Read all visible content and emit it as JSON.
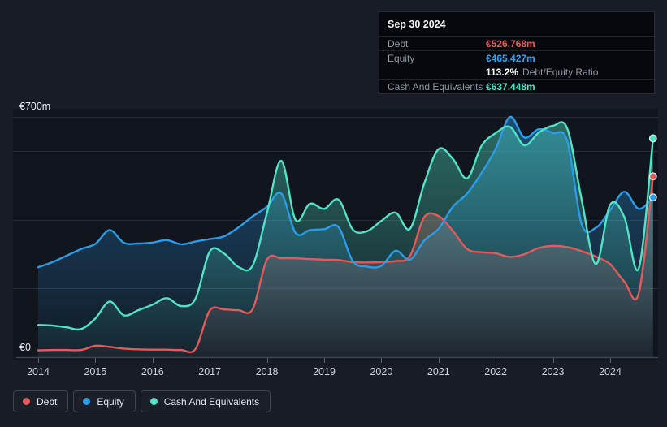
{
  "tooltip": {
    "date": "Sep 30 2024",
    "debt": {
      "label": "Debt",
      "value": "€526.768m",
      "color": "#ee5a5a"
    },
    "equity": {
      "label": "Equity",
      "value": "€465.427m",
      "color": "#3aa3ee"
    },
    "ratio": {
      "value": "113.2%",
      "label": "Debt/Equity Ratio"
    },
    "cash": {
      "label": "Cash And Equivalents",
      "value": "€637.448m",
      "color": "#4fe3c6"
    }
  },
  "legend": {
    "items": [
      {
        "label": "Debt",
        "color": "#e25a5a"
      },
      {
        "label": "Equity",
        "color": "#2d9ce6"
      },
      {
        "label": "Cash And Equivalents",
        "color": "#52e2c6"
      }
    ]
  },
  "chart_data": {
    "type": "area",
    "title": "Debt, Equity and Cash And Equivalents history",
    "x_ticks": [
      2014,
      2015,
      2016,
      2017,
      2018,
      2019,
      2020,
      2021,
      2022,
      2023,
      2024
    ],
    "x_range": [
      2014,
      2024.75
    ],
    "y_axis": {
      "min": 0,
      "max": 700,
      "top_label": "€700m",
      "bottom_label": "€0",
      "gridlines": [
        700,
        600,
        400,
        200,
        0
      ],
      "unit": "€m"
    },
    "grid_color": "#242c38",
    "axis_color": "#3b4450",
    "tick_color": "#5b6472",
    "plot_bg": "#10151e",
    "series": [
      {
        "name": "Debt",
        "color": "#e25a5a",
        "points": [
          [
            2014.0,
            20
          ],
          [
            2014.25,
            21
          ],
          [
            2014.5,
            21
          ],
          [
            2014.75,
            21
          ],
          [
            2015.0,
            33
          ],
          [
            2015.25,
            30
          ],
          [
            2015.5,
            25
          ],
          [
            2015.75,
            23
          ],
          [
            2016.0,
            22
          ],
          [
            2016.25,
            22
          ],
          [
            2016.5,
            21
          ],
          [
            2016.75,
            24
          ],
          [
            2017.0,
            136
          ],
          [
            2017.25,
            139
          ],
          [
            2017.5,
            137
          ],
          [
            2017.75,
            140
          ],
          [
            2018.0,
            284
          ],
          [
            2018.25,
            288
          ],
          [
            2018.5,
            288
          ],
          [
            2018.75,
            286
          ],
          [
            2019.0,
            284
          ],
          [
            2019.25,
            283
          ],
          [
            2019.5,
            277
          ],
          [
            2019.75,
            276
          ],
          [
            2020.0,
            277
          ],
          [
            2020.25,
            280
          ],
          [
            2020.5,
            295
          ],
          [
            2020.75,
            408
          ],
          [
            2021.0,
            411
          ],
          [
            2021.25,
            368
          ],
          [
            2021.5,
            315
          ],
          [
            2021.75,
            306
          ],
          [
            2022.0,
            303
          ],
          [
            2022.25,
            292
          ],
          [
            2022.5,
            300
          ],
          [
            2022.75,
            318
          ],
          [
            2023.0,
            324
          ],
          [
            2023.25,
            321
          ],
          [
            2023.5,
            309
          ],
          [
            2023.75,
            293
          ],
          [
            2024.0,
            271
          ],
          [
            2024.25,
            220
          ],
          [
            2024.5,
            186
          ],
          [
            2024.75,
            526.768
          ]
        ]
      },
      {
        "name": "Equity",
        "color": "#2d9ce6",
        "points": [
          [
            2014.0,
            262
          ],
          [
            2014.25,
            277
          ],
          [
            2014.5,
            296
          ],
          [
            2014.75,
            315
          ],
          [
            2015.0,
            330
          ],
          [
            2015.25,
            370
          ],
          [
            2015.5,
            333
          ],
          [
            2015.75,
            331
          ],
          [
            2016.0,
            334
          ],
          [
            2016.25,
            341
          ],
          [
            2016.5,
            329
          ],
          [
            2016.75,
            337
          ],
          [
            2017.0,
            344
          ],
          [
            2017.25,
            352
          ],
          [
            2017.5,
            378
          ],
          [
            2017.75,
            410
          ],
          [
            2018.0,
            438
          ],
          [
            2018.25,
            477
          ],
          [
            2018.5,
            362
          ],
          [
            2018.75,
            370
          ],
          [
            2019.0,
            373
          ],
          [
            2019.25,
            379
          ],
          [
            2019.5,
            280
          ],
          [
            2019.75,
            264
          ],
          [
            2020.0,
            266
          ],
          [
            2020.25,
            310
          ],
          [
            2020.5,
            284
          ],
          [
            2020.75,
            340
          ],
          [
            2021.0,
            374
          ],
          [
            2021.25,
            438
          ],
          [
            2021.5,
            477
          ],
          [
            2021.75,
            536
          ],
          [
            2022.0,
            607
          ],
          [
            2022.25,
            700
          ],
          [
            2022.5,
            640
          ],
          [
            2022.75,
            664
          ],
          [
            2023.0,
            653
          ],
          [
            2023.25,
            630
          ],
          [
            2023.5,
            388
          ],
          [
            2023.75,
            377
          ],
          [
            2024.0,
            428
          ],
          [
            2024.25,
            482
          ],
          [
            2024.5,
            432
          ],
          [
            2024.75,
            465.427
          ]
        ]
      },
      {
        "name": "Cash And Equivalents",
        "color": "#52e2c6",
        "points": [
          [
            2014.0,
            94
          ],
          [
            2014.25,
            92
          ],
          [
            2014.5,
            87
          ],
          [
            2014.75,
            82
          ],
          [
            2015.0,
            113
          ],
          [
            2015.25,
            162
          ],
          [
            2015.5,
            122
          ],
          [
            2015.75,
            137
          ],
          [
            2016.0,
            153
          ],
          [
            2016.25,
            172
          ],
          [
            2016.5,
            149
          ],
          [
            2016.75,
            170
          ],
          [
            2017.0,
            308
          ],
          [
            2017.25,
            302
          ],
          [
            2017.5,
            263
          ],
          [
            2017.75,
            267
          ],
          [
            2018.0,
            420
          ],
          [
            2018.25,
            572
          ],
          [
            2018.5,
            400
          ],
          [
            2018.75,
            447
          ],
          [
            2019.0,
            432
          ],
          [
            2019.25,
            459
          ],
          [
            2019.5,
            372
          ],
          [
            2019.75,
            367
          ],
          [
            2020.0,
            397
          ],
          [
            2020.25,
            421
          ],
          [
            2020.5,
            374
          ],
          [
            2020.75,
            506
          ],
          [
            2021.0,
            606
          ],
          [
            2021.25,
            578
          ],
          [
            2021.5,
            521
          ],
          [
            2021.75,
            615
          ],
          [
            2022.0,
            653
          ],
          [
            2022.25,
            671
          ],
          [
            2022.5,
            617
          ],
          [
            2022.75,
            654
          ],
          [
            2023.0,
            674
          ],
          [
            2023.25,
            666
          ],
          [
            2023.5,
            460
          ],
          [
            2023.75,
            271
          ],
          [
            2024.0,
            444
          ],
          [
            2024.25,
            407
          ],
          [
            2024.5,
            259
          ],
          [
            2024.75,
            637.448
          ]
        ]
      }
    ],
    "end_markers": true
  }
}
